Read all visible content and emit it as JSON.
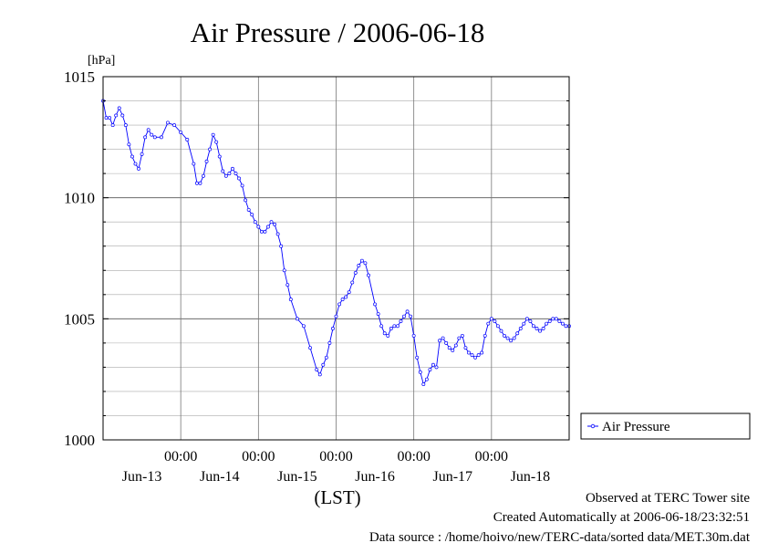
{
  "chart_data": {
    "type": "line",
    "title": "Air Pressure / 2006-06-18",
    "ylabel": "[hPa]",
    "xlabel": "(LST)",
    "ylim": [
      1000,
      1015
    ],
    "yticks": [
      1000,
      1005,
      1010,
      1015
    ],
    "x_day_ticks": [
      "Jun-13",
      "Jun-14",
      "Jun-15",
      "Jun-16",
      "Jun-17",
      "Jun-18"
    ],
    "x_time_ticks": [
      "00:00",
      "00:00",
      "00:00",
      "00:00",
      "00:00"
    ],
    "xlim_hours": [
      0,
      144
    ],
    "grid": true,
    "legend": "right",
    "series": [
      {
        "name": "Air Pressure",
        "color": "#0000ff",
        "x_hours": [
          0,
          1,
          2,
          3,
          4,
          5,
          6,
          7,
          8,
          9,
          10,
          11,
          12,
          13,
          14,
          15,
          16,
          18,
          20,
          22,
          24,
          26,
          28,
          29,
          30,
          31,
          32,
          33,
          34,
          35,
          36,
          37,
          38,
          39,
          40,
          41,
          42,
          43,
          44,
          45,
          46,
          47,
          48,
          49,
          50,
          51,
          52,
          53,
          54,
          55,
          56,
          57,
          58,
          60,
          62,
          64,
          66,
          67,
          68,
          69,
          70,
          71,
          72,
          73,
          74,
          75,
          76,
          77,
          78,
          79,
          80,
          81,
          82,
          84,
          85,
          86,
          87,
          88,
          89,
          90,
          91,
          92,
          93,
          94,
          95,
          96,
          97,
          98,
          99,
          100,
          101,
          102,
          103,
          104,
          105,
          106,
          107,
          108,
          109,
          110,
          111,
          112,
          113,
          114,
          115,
          116,
          117,
          118,
          119,
          120,
          121,
          122,
          123,
          124,
          125,
          126,
          127,
          128,
          129,
          130,
          131,
          132,
          133,
          134,
          135,
          136,
          137,
          138,
          139,
          140,
          141,
          142,
          143,
          144
        ],
        "values": [
          1014.0,
          1013.3,
          1013.3,
          1013.0,
          1013.4,
          1013.7,
          1013.4,
          1013.0,
          1012.2,
          1011.7,
          1011.4,
          1011.2,
          1011.8,
          1012.5,
          1012.8,
          1012.6,
          1012.5,
          1012.5,
          1013.1,
          1013.0,
          1012.7,
          1012.4,
          1011.4,
          1010.6,
          1010.6,
          1010.9,
          1011.5,
          1012.0,
          1012.6,
          1012.3,
          1011.7,
          1011.1,
          1010.9,
          1011.0,
          1011.2,
          1011.0,
          1010.8,
          1010.5,
          1009.9,
          1009.5,
          1009.3,
          1009.0,
          1008.8,
          1008.6,
          1008.6,
          1008.8,
          1009.0,
          1008.9,
          1008.5,
          1008.0,
          1007.0,
          1006.4,
          1005.8,
          1005.0,
          1004.7,
          1003.8,
          1002.9,
          1002.7,
          1003.1,
          1003.4,
          1004.0,
          1004.6,
          1005.1,
          1005.6,
          1005.8,
          1005.9,
          1006.1,
          1006.5,
          1006.9,
          1007.2,
          1007.4,
          1007.3,
          1006.8,
          1005.6,
          1005.2,
          1004.7,
          1004.4,
          1004.3,
          1004.6,
          1004.7,
          1004.7,
          1004.9,
          1005.1,
          1005.3,
          1005.1,
          1004.3,
          1003.4,
          1002.8,
          1002.3,
          1002.5,
          1002.9,
          1003.1,
          1003.0,
          1004.1,
          1004.2,
          1004.0,
          1003.8,
          1003.7,
          1003.9,
          1004.2,
          1004.3,
          1003.8,
          1003.6,
          1003.5,
          1003.4,
          1003.5,
          1003.6,
          1004.3,
          1004.8,
          1005.0,
          1004.9,
          1004.7,
          1004.5,
          1004.3,
          1004.2,
          1004.1,
          1004.2,
          1004.4,
          1004.6,
          1004.8,
          1005.0,
          1004.9,
          1004.7,
          1004.6,
          1004.5,
          1004.6,
          1004.8,
          1004.9,
          1005.0,
          1005.0,
          1004.9,
          1004.8,
          1004.7,
          1004.7
        ]
      }
    ]
  },
  "notes": {
    "observed": "Observed at TERC Tower site",
    "created": "Created Automatically at 2006-06-18/23:32:51",
    "source": "Data source : /home/hoivo/new/TERC-data/sorted data/MET.30m.dat"
  }
}
